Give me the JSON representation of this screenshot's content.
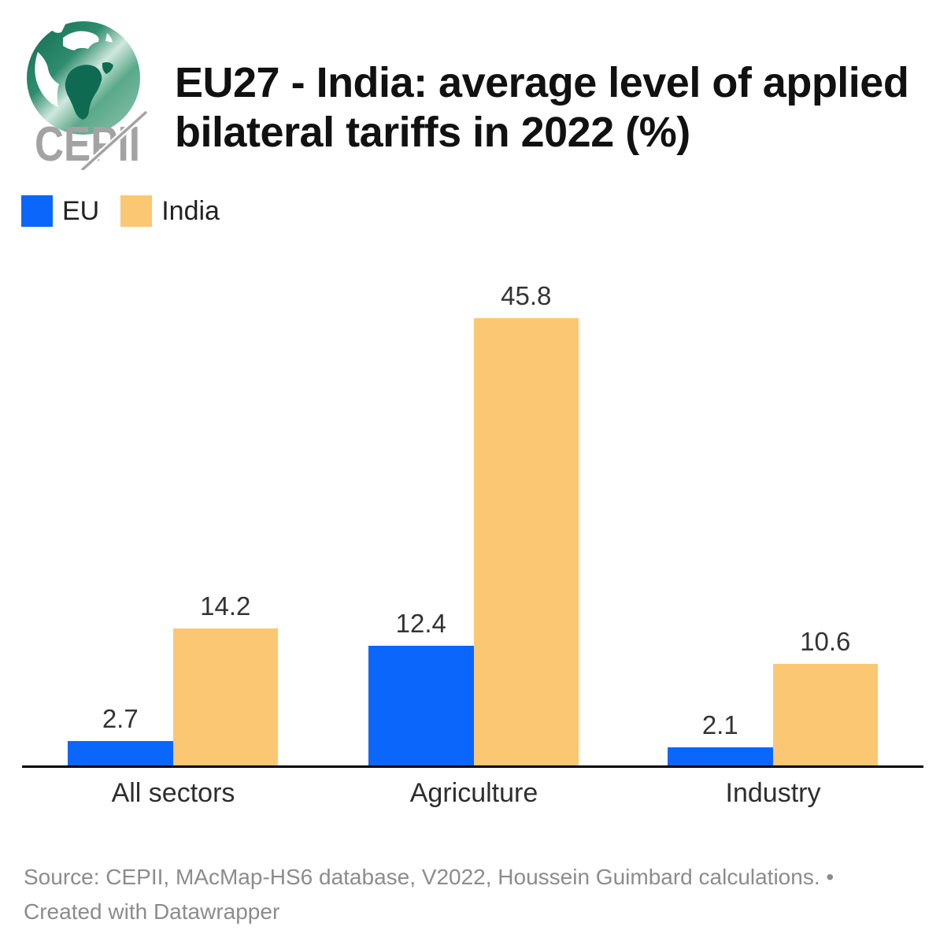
{
  "header": {
    "title": "EU27 - India: average level of applied\nbilateral tariffs in 2022 (%)",
    "logo_text": "CEPII"
  },
  "chart_data": {
    "type": "bar",
    "title": "EU27 - India: average level of applied bilateral tariffs in 2022 (%)",
    "categories": [
      "All sectors",
      "Agriculture",
      "Industry"
    ],
    "series": [
      {
        "name": "EU",
        "color": "#0b67fb",
        "values": [
          2.7,
          12.4,
          2.1
        ]
      },
      {
        "name": "India",
        "color": "#fbc773",
        "values": [
          14.2,
          45.8,
          10.6
        ]
      }
    ],
    "value_labels": true,
    "legend_position": "top-left",
    "y_axis": "hidden",
    "ylim": [
      0,
      46
    ],
    "grid": false
  },
  "colors": {
    "axis": "#000000",
    "label_text": "#333333",
    "footer_gray": "#8c8c8c",
    "logo_green_dark": "#0e6b52",
    "logo_gray": "#a3a3a3"
  },
  "footer": {
    "text": "Source: CEPII, MAcMap-HS6 database, V2022, Houssein Guimbard calculations. •\nCreated with Datawrapper"
  }
}
